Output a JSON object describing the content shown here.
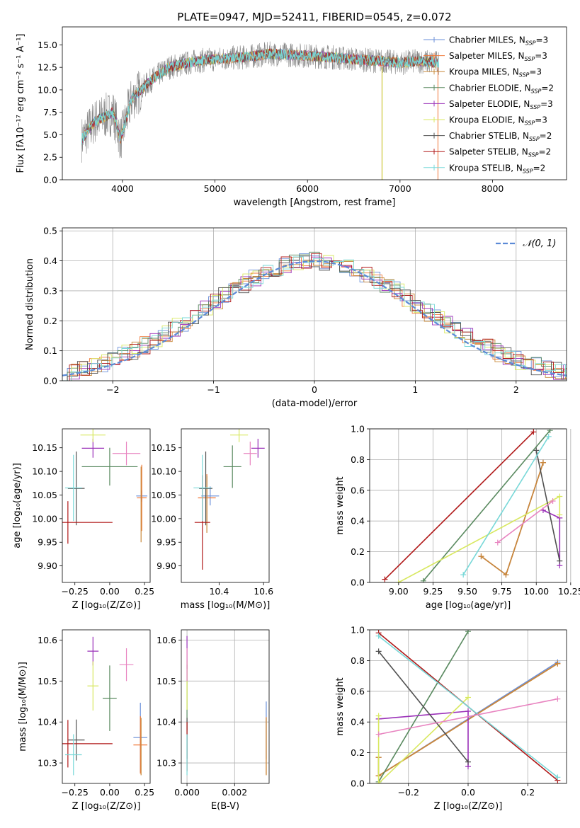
{
  "figure": {
    "title": "PLATE=0947, MJD=52411, FIBERID=0545, z=0.072"
  },
  "series_styles": [
    {
      "name": "Chabrier MILES",
      "nssp": "3",
      "color": "#6a8fd9"
    },
    {
      "name": "Salpeter MILES",
      "nssp": "3",
      "color": "#f07838"
    },
    {
      "name": "Kroupa MILES",
      "nssp": "3",
      "color": "#c8883a"
    },
    {
      "name": "Chabrier ELODIE",
      "nssp": "2",
      "color": "#5a8a60"
    },
    {
      "name": "Salpeter ELODIE",
      "nssp": "3",
      "color": "#9a30b8"
    },
    {
      "name": "Kroupa ELODIE",
      "nssp": "3",
      "color": "#d8e860"
    },
    {
      "name": "Chabrier STELIB",
      "nssp": "2",
      "color": "#505050"
    },
    {
      "name": "Salpeter STELIB",
      "nssp": "2",
      "color": "#b01818"
    },
    {
      "name": "Kroupa STELIB",
      "nssp": "2",
      "color": "#78d8d8"
    }
  ],
  "legend_ssp_prefix": "N",
  "legend_ssp_sub": "SSP",
  "chart_data": [
    {
      "id": "spectrum",
      "type": "line",
      "xlabel": "wavelength [Angstrom, rest frame]",
      "ylabel": "Flux [fλ10⁻¹⁷ erg cm⁻² s⁻¹ A⁻¹]",
      "xlim": [
        3350,
        8800
      ],
      "ylim": [
        0,
        17
      ],
      "xticks": [
        4000,
        5000,
        6000,
        7000,
        8000
      ],
      "yticks": [
        0.0,
        2.5,
        5.0,
        7.5,
        10.0,
        12.5,
        15.0
      ],
      "legend_position": "right",
      "observed_data": {
        "x_range": [
          3560,
          7420
        ],
        "anchors": [
          [
            3560,
            4.5
          ],
          [
            3700,
            6.5
          ],
          [
            3900,
            7.5
          ],
          [
            3980,
            4.5
          ],
          [
            4100,
            9.0
          ],
          [
            4300,
            11.0
          ],
          [
            4500,
            12.5
          ],
          [
            4800,
            13.2
          ],
          [
            5100,
            13.5
          ],
          [
            5300,
            13.6
          ],
          [
            5600,
            14.0
          ],
          [
            6000,
            13.8
          ],
          [
            6300,
            13.6
          ],
          [
            6500,
            13.4
          ],
          [
            6800,
            13.2
          ],
          [
            7000,
            13.0
          ],
          [
            7200,
            13.2
          ],
          [
            7420,
            13.0
          ]
        ]
      },
      "model_dropouts": [
        [
          6805,
          0,
          "#c8883a"
        ],
        [
          6808,
          0,
          "#d8e860"
        ],
        [
          7410,
          0,
          "#f07838"
        ]
      ]
    },
    {
      "id": "residuals",
      "type": "histogram",
      "xlabel": "(data-model)/error",
      "ylabel": "Normed distribution",
      "xlim": [
        -2.5,
        2.5
      ],
      "ylim": [
        0,
        0.51
      ],
      "xticks": [
        -2,
        -1,
        0,
        1,
        2
      ],
      "yticks": [
        0.0,
        0.1,
        0.2,
        0.3,
        0.4,
        0.5
      ],
      "grid": true,
      "legend_position": "top-right",
      "reference_label": "𝒩(0, 1)",
      "reference_color": "#5b8ad6"
    },
    {
      "id": "age-vs-Z",
      "type": "errorbar",
      "xlabel": "Z [log₁₀(Z/Z⊙)]",
      "ylabel": "age  [log₁₀(age/yr)]",
      "xlim": [
        -0.34,
        0.29
      ],
      "ylim": [
        9.865,
        10.19
      ],
      "xticks": [
        -0.25,
        0.0,
        0.25
      ],
      "yticks": [
        9.9,
        9.95,
        10.0,
        10.05,
        10.1,
        10.15
      ],
      "points": [
        {
          "s": 0,
          "x": 0.23,
          "y": 10.048,
          "xe": 0.04,
          "ye": 0.012
        },
        {
          "s": 1,
          "x": 0.23,
          "y": 10.044,
          "xe": 0.035,
          "ye": 0.07
        },
        {
          "s": 2,
          "x": 0.225,
          "y": 10.03,
          "xe": 0.0,
          "ye": 0.08
        },
        {
          "s": 3,
          "x": 0.0,
          "y": 10.11,
          "xe": 0.2,
          "ye": 0.04
        },
        {
          "s": 4,
          "x": -0.12,
          "y": 10.149,
          "xe": 0.08,
          "ye": 0.02
        },
        {
          "s": 5,
          "x": -0.12,
          "y": 10.177,
          "xe": 0.09,
          "ye": 0.015
        },
        {
          "s": 6,
          "x": -0.24,
          "y": 10.064,
          "xe": 0.06,
          "ye": 0.078
        },
        {
          "s": 7,
          "x": -0.3,
          "y": 9.992,
          "xe": 0.32,
          "ye": 0.045
        },
        {
          "s": 8,
          "x": -0.26,
          "y": 10.065,
          "xe": 0.06,
          "ye": 0.07
        },
        {
          "s": 9,
          "x": 0.12,
          "y": 10.138,
          "xe": 0.1,
          "ye": 0.025
        }
      ]
    },
    {
      "id": "age-vs-mass",
      "type": "errorbar",
      "xlabel": "mass [log₁₀(M/M⊙)]",
      "ylabel": "",
      "xlim": [
        10.23,
        10.625
      ],
      "ylim": [
        9.865,
        10.19
      ],
      "xticks": [
        10.4,
        10.6
      ],
      "yticks": [
        9.9,
        9.95,
        10.0,
        10.05,
        10.1,
        10.15
      ],
      "points": [
        {
          "s": 0,
          "x": 10.36,
          "y": 10.048,
          "xe": 0.04,
          "ye": 0.02
        },
        {
          "s": 1,
          "x": 10.345,
          "y": 10.044,
          "xe": 0.04,
          "ye": 0.05
        },
        {
          "s": 2,
          "x": 10.345,
          "y": 10.03,
          "xe": 0.0,
          "ye": 0.06
        },
        {
          "s": 3,
          "x": 10.46,
          "y": 10.11,
          "xe": 0.04,
          "ye": 0.045
        },
        {
          "s": 4,
          "x": 10.575,
          "y": 10.149,
          "xe": 0.03,
          "ye": 0.02
        },
        {
          "s": 5,
          "x": 10.49,
          "y": 10.177,
          "xe": 0.04,
          "ye": 0.015
        },
        {
          "s": 6,
          "x": 10.34,
          "y": 10.064,
          "xe": 0.03,
          "ye": 0.078
        },
        {
          "s": 7,
          "x": 10.325,
          "y": 9.992,
          "xe": 0.035,
          "ye": 0.1
        },
        {
          "s": 8,
          "x": 10.325,
          "y": 10.065,
          "xe": 0.04,
          "ye": 0.07
        },
        {
          "s": 9,
          "x": 10.54,
          "y": 10.138,
          "xe": 0.03,
          "ye": 0.025
        }
      ]
    },
    {
      "id": "weight-vs-age",
      "type": "line",
      "xlabel": "age  [log₁₀(age/yr)]",
      "ylabel": "mass weight",
      "xlim": [
        8.79,
        10.22
      ],
      "ylim": [
        0,
        1
      ],
      "xticks": [
        9.0,
        9.25,
        9.5,
        9.75,
        10.0,
        10.25
      ],
      "yticks": [
        0.0,
        0.2,
        0.4,
        0.6,
        0.8,
        1.0
      ],
      "grid": true,
      "series": [
        {
          "s": 0,
          "x": [
            9.6,
            9.78,
            10.05
          ],
          "y": [
            0.17,
            0.05,
            0.78
          ]
        },
        {
          "s": 1,
          "x": [
            9.6,
            9.78,
            10.05
          ],
          "y": [
            0.17,
            0.05,
            0.78
          ]
        },
        {
          "s": 2,
          "x": [
            9.6,
            9.78,
            10.05
          ],
          "y": [
            0.17,
            0.05,
            0.78
          ]
        },
        {
          "s": 3,
          "x": [
            9.18,
            10.1
          ],
          "y": [
            0.01,
            0.99
          ]
        },
        {
          "s": 4,
          "x": [
            10.05,
            10.17,
            10.17
          ],
          "y": [
            0.47,
            0.42,
            0.11
          ]
        },
        {
          "s": 5,
          "x": [
            9.0,
            10.17,
            10.17
          ],
          "y": [
            0.0,
            0.56,
            0.44
          ]
        },
        {
          "s": 6,
          "x": [
            10.0,
            10.17
          ],
          "y": [
            0.86,
            0.14
          ]
        },
        {
          "s": 7,
          "x": [
            8.9,
            9.98
          ],
          "y": [
            0.02,
            0.98
          ]
        },
        {
          "s": 8,
          "x": [
            9.47,
            10.09
          ],
          "y": [
            0.05,
            0.95
          ]
        },
        {
          "s": 9,
          "x": [
            9.72,
            10.12
          ],
          "y": [
            0.26,
            0.53
          ]
        }
      ]
    },
    {
      "id": "mass-vs-Z",
      "type": "errorbar",
      "xlabel": "Z [log₁₀(Z/Z⊙)]",
      "ylabel": "mass [log₁₀(M/M⊙)]",
      "xlim": [
        -0.34,
        0.29
      ],
      "ylim": [
        10.25,
        10.625
      ],
      "xticks": [
        -0.25,
        0.0,
        0.25
      ],
      "yticks": [
        10.3,
        10.4,
        10.5,
        10.6
      ],
      "points": [
        {
          "s": 0,
          "x": 0.22,
          "y": 10.362,
          "xe": 0.05,
          "ye": 0.085
        },
        {
          "s": 1,
          "x": 0.22,
          "y": 10.344,
          "xe": 0.05,
          "ye": 0.07
        },
        {
          "s": 2,
          "x": 0.225,
          "y": 10.34,
          "xe": 0.0,
          "ye": 0.07
        },
        {
          "s": 3,
          "x": 0.0,
          "y": 10.458,
          "xe": 0.05,
          "ye": 0.08
        },
        {
          "s": 4,
          "x": -0.12,
          "y": 10.573,
          "xe": 0.04,
          "ye": 0.035
        },
        {
          "s": 5,
          "x": -0.12,
          "y": 10.488,
          "xe": 0.04,
          "ye": 0.06
        },
        {
          "s": 6,
          "x": -0.24,
          "y": 10.356,
          "xe": 0.06,
          "ye": 0.05
        },
        {
          "s": 7,
          "x": -0.3,
          "y": 10.347,
          "xe": 0.32,
          "ye": 0.058
        },
        {
          "s": 8,
          "x": -0.26,
          "y": 10.32,
          "xe": 0.06,
          "ye": 0.05
        },
        {
          "s": 9,
          "x": 0.12,
          "y": 10.54,
          "xe": 0.05,
          "ye": 0.04
        }
      ]
    },
    {
      "id": "mass-vs-ebv",
      "type": "errorbar",
      "xlabel": "E(B-V)",
      "ylabel": "",
      "xlim": [
        -0.00024,
        0.00345
      ],
      "ylim": [
        10.25,
        10.625
      ],
      "xticks": [
        0.0,
        0.002
      ],
      "yticks": [
        10.3,
        10.4,
        10.5,
        10.6
      ],
      "grid": true,
      "points": [
        {
          "s": 0,
          "x": 0.00333,
          "y": 10.38,
          "xe": 0.0,
          "ye": 0.07
        },
        {
          "s": 1,
          "x": 0.00333,
          "y": 10.342,
          "xe": 0.0,
          "ye": 0.07
        },
        {
          "s": 2,
          "x": 0.00333,
          "y": 10.34,
          "xe": 0.0,
          "ye": 0.07
        },
        {
          "s": 3,
          "x": 0.0,
          "y": 10.46,
          "xe": 0.0,
          "ye": 0.08
        },
        {
          "s": 4,
          "x": 0.0,
          "y": 10.57,
          "xe": 0.0,
          "ye": 0.04
        },
        {
          "s": 5,
          "x": 0.0,
          "y": 10.49,
          "xe": 0.0,
          "ye": 0.06
        },
        {
          "s": 6,
          "x": 0.0,
          "y": 10.36,
          "xe": 0.0,
          "ye": 0.05
        },
        {
          "s": 7,
          "x": 0.0,
          "y": 10.34,
          "xe": 0.0,
          "ye": 0.06
        },
        {
          "s": 8,
          "x": 0.0,
          "y": 10.32,
          "xe": 0.0,
          "ye": 0.05
        },
        {
          "s": 9,
          "x": 0.0,
          "y": 10.54,
          "xe": 0.0,
          "ye": 0.04
        }
      ]
    },
    {
      "id": "weight-vs-Z",
      "type": "line",
      "xlabel": "Z [log₁₀(Z/Z⊙)]",
      "ylabel": "mass weight",
      "xlim": [
        -0.33,
        0.33
      ],
      "ylim": [
        0,
        1
      ],
      "xticks": [
        -0.2,
        0.0,
        0.2
      ],
      "yticks": [
        0.0,
        0.2,
        0.4,
        0.6,
        0.8,
        1.0
      ],
      "grid": true,
      "series": [
        {
          "s": 0,
          "x": [
            -0.3,
            -0.3,
            0.3
          ],
          "y": [
            0.17,
            0.05,
            0.79
          ]
        },
        {
          "s": 1,
          "x": [
            -0.3,
            -0.3,
            0.3
          ],
          "y": [
            0.17,
            0.05,
            0.78
          ]
        },
        {
          "s": 2,
          "x": [
            -0.3,
            -0.3,
            0.3
          ],
          "y": [
            0.17,
            0.05,
            0.78
          ]
        },
        {
          "s": 3,
          "x": [
            -0.3,
            0.0
          ],
          "y": [
            0.01,
            0.99
          ]
        },
        {
          "s": 4,
          "x": [
            -0.3,
            0.0,
            0.0
          ],
          "y": [
            0.42,
            0.47,
            0.11
          ]
        },
        {
          "s": 5,
          "x": [
            -0.3,
            -0.3,
            0.0
          ],
          "y": [
            0.44,
            0.0,
            0.56
          ]
        },
        {
          "s": 6,
          "x": [
            -0.3,
            0.0
          ],
          "y": [
            0.86,
            0.14
          ]
        },
        {
          "s": 7,
          "x": [
            -0.3,
            0.3
          ],
          "y": [
            0.98,
            0.02
          ]
        },
        {
          "s": 8,
          "x": [
            -0.3,
            0.3
          ],
          "y": [
            0.96,
            0.04
          ]
        },
        {
          "s": 9,
          "x": [
            -0.3,
            0.3
          ],
          "y": [
            0.32,
            0.55
          ]
        }
      ]
    }
  ],
  "extra_styles": [
    {
      "color": "#e884c0"
    }
  ]
}
